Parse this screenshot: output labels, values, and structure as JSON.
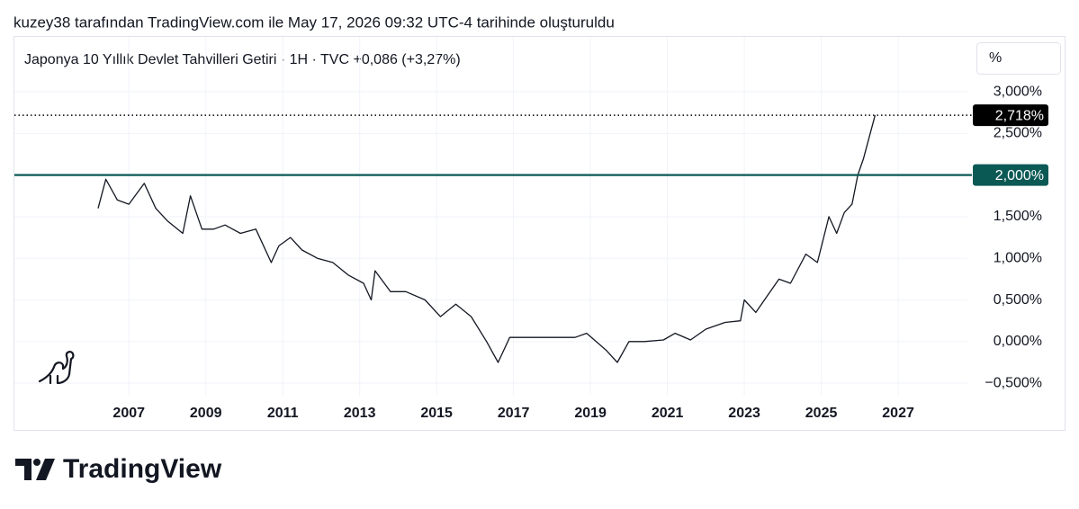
{
  "header": "kuzey38 tarafından TradingView.com ile May 17, 2026 09:32 UTC-4 tarihinde oluşturuldu",
  "footer": "TradingView",
  "chart_data": {
    "type": "line",
    "title": "Japonya 10 Yıllık Devlet Tahvilleri Getiri · 1H · TVC  +0,086 (+3,27%)",
    "unit_label": "%",
    "color": "#131722",
    "x": [
      2006.2,
      2006.4,
      2006.7,
      2007.0,
      2007.4,
      2007.7,
      2008.0,
      2008.4,
      2008.6,
      2008.9,
      2009.2,
      2009.5,
      2009.9,
      2010.3,
      2010.7,
      2010.9,
      2011.2,
      2011.5,
      2011.9,
      2012.3,
      2012.7,
      2013.1,
      2013.3,
      2013.4,
      2013.8,
      2014.2,
      2014.7,
      2015.1,
      2015.5,
      2015.9,
      2016.3,
      2016.6,
      2016.9,
      2017.3,
      2017.7,
      2018.2,
      2018.6,
      2018.9,
      2019.4,
      2019.7,
      2020.0,
      2020.4,
      2020.9,
      2021.2,
      2021.6,
      2022.0,
      2022.5,
      2022.9,
      2023.0,
      2023.3,
      2023.6,
      2023.9,
      2024.2,
      2024.6,
      2024.9,
      2025.2,
      2025.4,
      2025.6,
      2025.8,
      2025.95,
      2026.1,
      2026.4
    ],
    "values": [
      1.6,
      1.95,
      1.7,
      1.65,
      1.9,
      1.6,
      1.45,
      1.3,
      1.75,
      1.35,
      1.35,
      1.4,
      1.3,
      1.35,
      0.95,
      1.15,
      1.25,
      1.1,
      1.0,
      0.95,
      0.8,
      0.7,
      0.5,
      0.85,
      0.6,
      0.6,
      0.5,
      0.3,
      0.45,
      0.3,
      0.0,
      -0.25,
      0.05,
      0.05,
      0.05,
      0.05,
      0.05,
      0.1,
      -0.1,
      -0.25,
      0.0,
      0.0,
      0.02,
      0.1,
      0.02,
      0.15,
      0.23,
      0.25,
      0.5,
      0.35,
      0.55,
      0.75,
      0.7,
      1.05,
      0.95,
      1.5,
      1.3,
      1.55,
      1.65,
      2.0,
      2.2,
      2.718
    ],
    "xlim": [
      2004,
      2028.8
    ],
    "xticks": [
      2007,
      2009,
      2011,
      2013,
      2015,
      2017,
      2019,
      2021,
      2023,
      2025,
      2027
    ],
    "ylim": [
      -1.06,
      3.67
    ],
    "yticks": [
      {
        "value": -0.5,
        "label": "−0,500%"
      },
      {
        "value": 0,
        "label": "0,000%"
      },
      {
        "value": 0.5,
        "label": "0,500%"
      },
      {
        "value": 1,
        "label": "1,000%"
      },
      {
        "value": 1.5,
        "label": "1,500%"
      },
      {
        "value": 2,
        "label": "2,000%"
      },
      {
        "value": 2.5,
        "label": "2,500%"
      },
      {
        "value": 3,
        "label": "3,000%"
      }
    ],
    "grid": true,
    "markers": [
      {
        "value": 2.718,
        "label": "2,718%",
        "color": "#000000",
        "style": "dotted"
      },
      {
        "value": 2,
        "label": "2,000%",
        "color": "#0b5955",
        "style": "solid"
      }
    ]
  }
}
